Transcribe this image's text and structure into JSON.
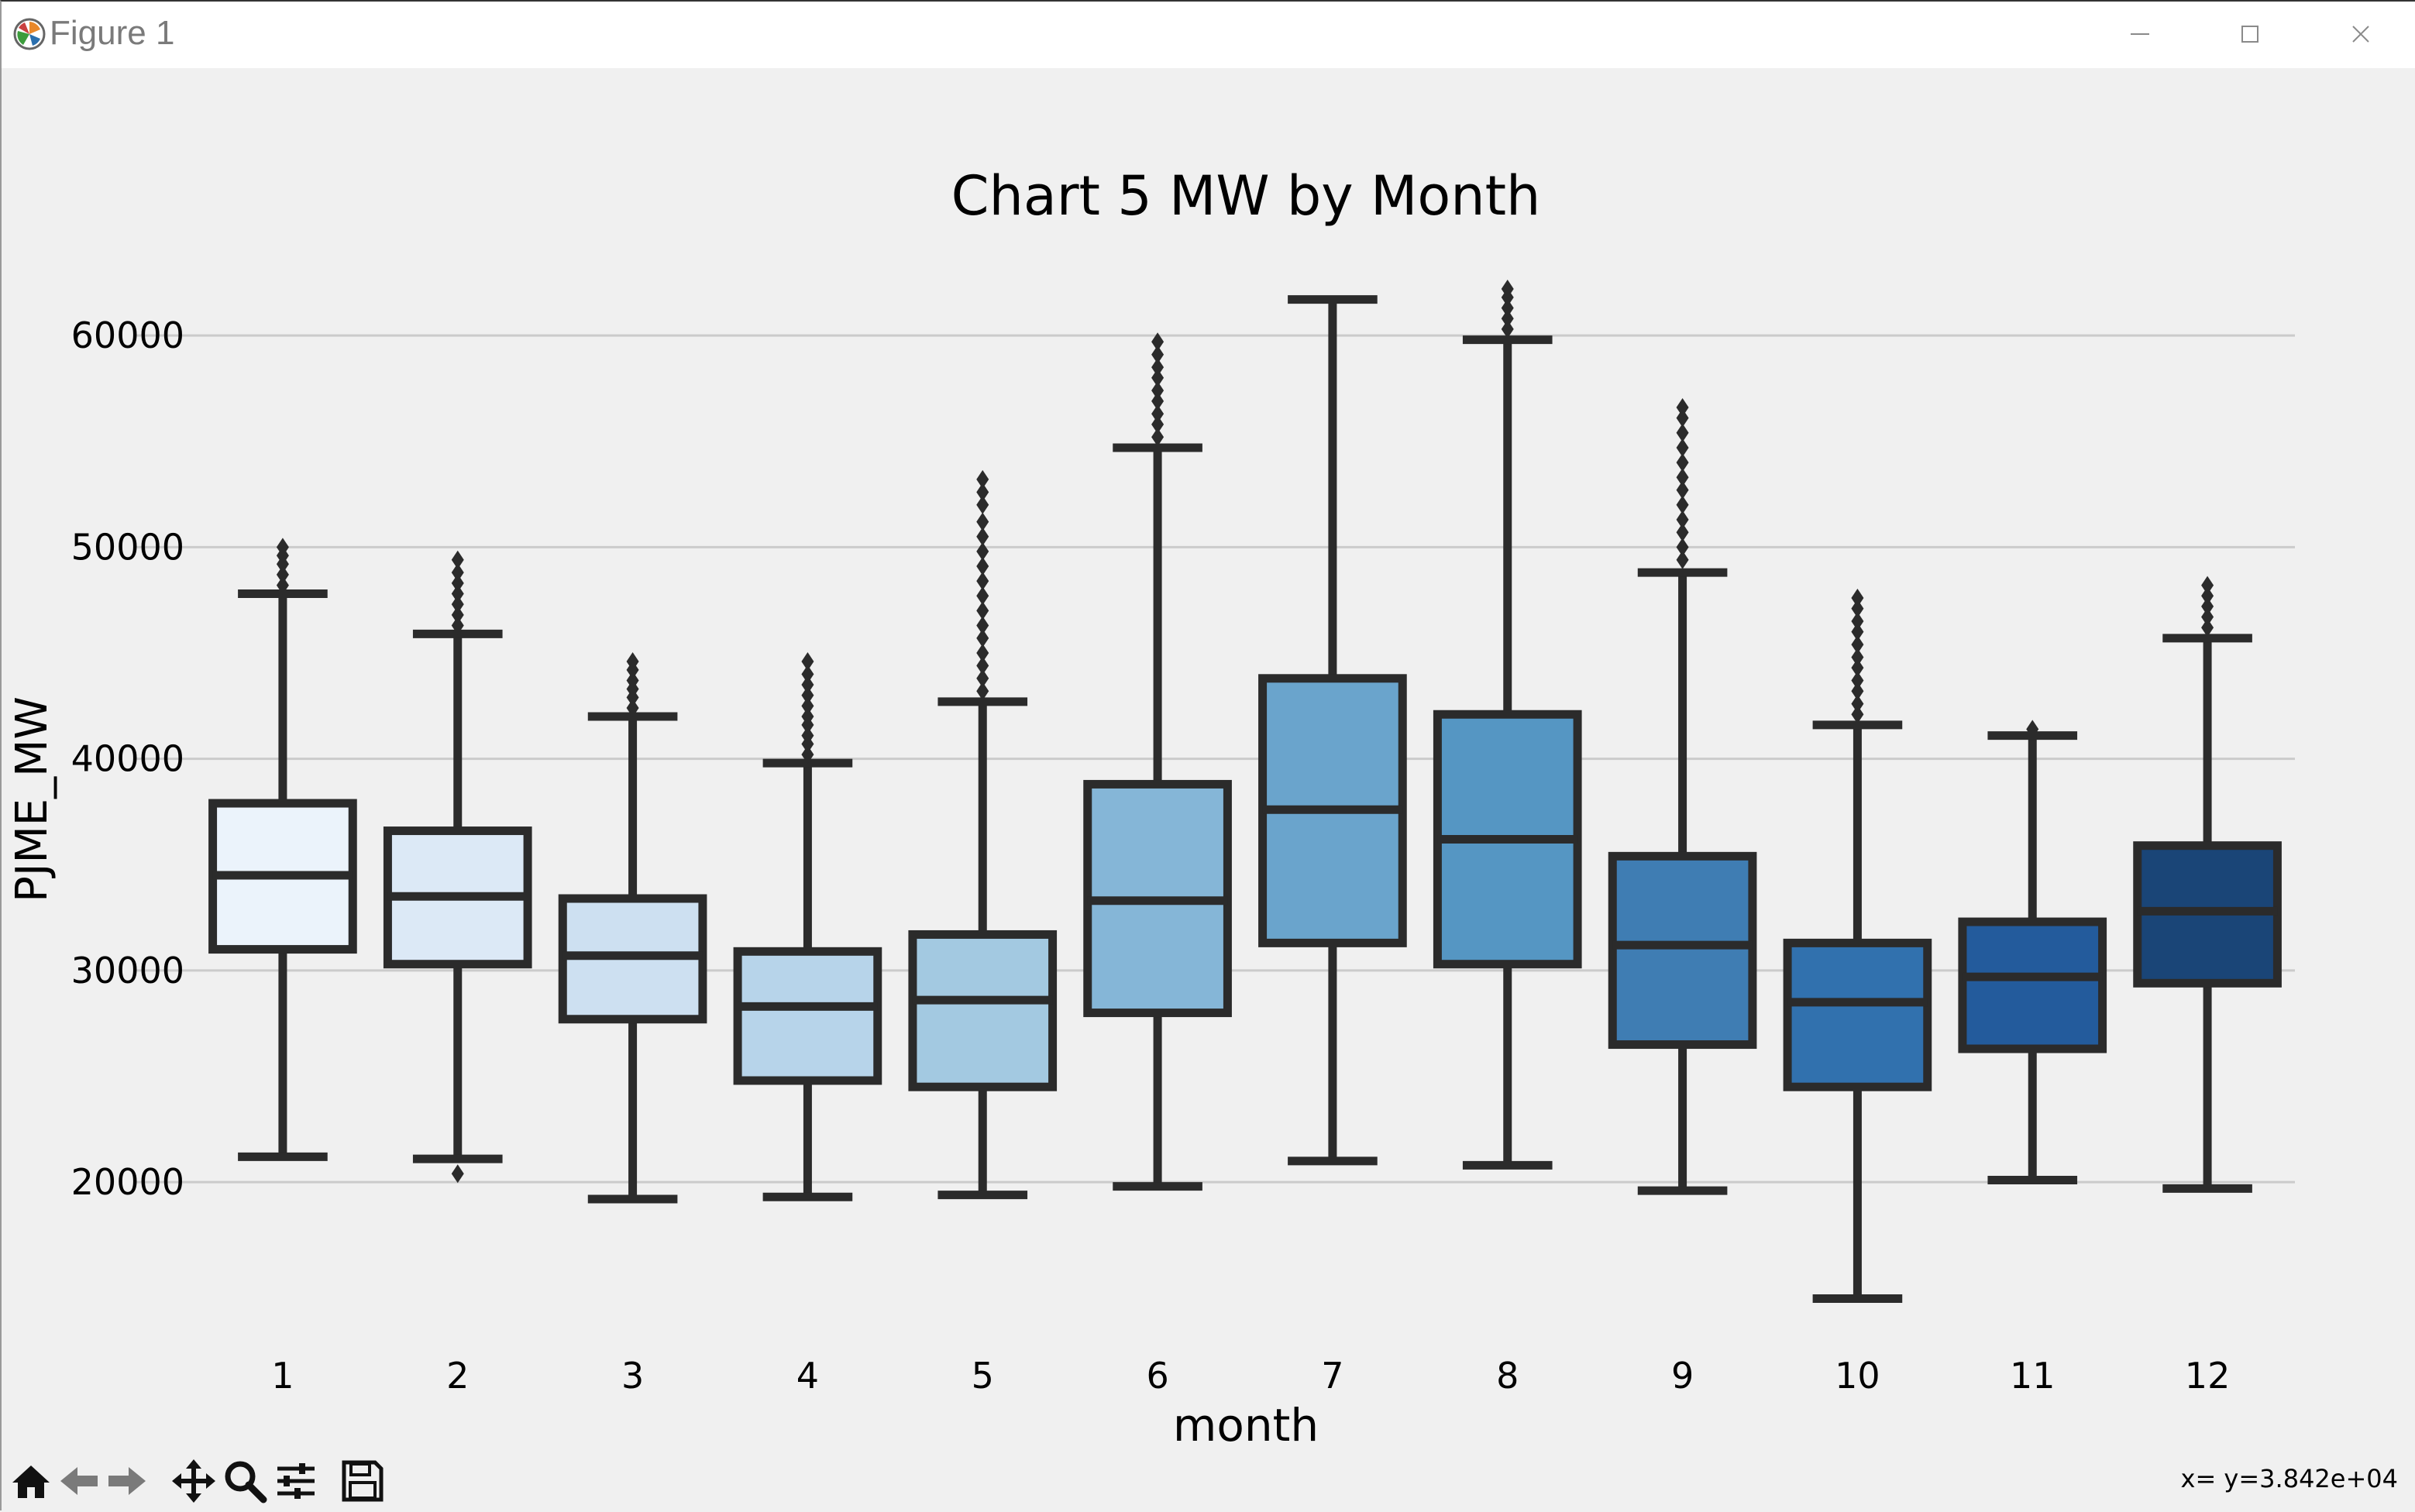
{
  "window": {
    "title": "Figure 1"
  },
  "status": {
    "coords": "x= y=3.842e+04"
  },
  "toolbar": {
    "tools": [
      {
        "name": "home-icon"
      },
      {
        "name": "back-icon"
      },
      {
        "name": "forward-icon"
      },
      {
        "name": "pan-icon"
      },
      {
        "name": "zoom-icon"
      },
      {
        "name": "configure-subplots-icon"
      },
      {
        "name": "save-icon"
      }
    ]
  },
  "chart_data": {
    "type": "box",
    "title": "Chart 5 MW by Month",
    "xlabel": "month",
    "ylabel": "PJME_MW",
    "ylim": [
      13200,
      63700
    ],
    "yticks": [
      20000,
      30000,
      40000,
      50000,
      60000
    ],
    "grid": "horizontal",
    "categories": [
      "1",
      "2",
      "3",
      "4",
      "5",
      "6",
      "7",
      "8",
      "9",
      "10",
      "11",
      "12"
    ],
    "boxes": [
      {
        "min": 21200,
        "q1": 31000,
        "median": 34500,
        "q3": 37900,
        "max": 47800,
        "fliers": [
          48200,
          48700,
          49200,
          49600,
          50000
        ],
        "color": "#ebf3fb"
      },
      {
        "min": 21100,
        "q1": 30300,
        "median": 33500,
        "q3": 36600,
        "max": 45900,
        "fliers": [
          20400,
          46300,
          46800,
          47300,
          47800,
          48300,
          48800,
          49400
        ],
        "color": "#dce9f6"
      },
      {
        "min": 19200,
        "q1": 27700,
        "median": 30700,
        "q3": 33400,
        "max": 42000,
        "fliers": [
          42400,
          42900,
          43300,
          43700,
          44200,
          44600
        ],
        "color": "#cde0f1"
      },
      {
        "min": 19300,
        "q1": 24800,
        "median": 28300,
        "q3": 30900,
        "max": 39800,
        "fliers": [
          40200,
          40700,
          41100,
          41600,
          42000,
          42500,
          43000,
          43500,
          44000,
          44600
        ],
        "color": "#b7d4ea"
      },
      {
        "min": 19400,
        "q1": 24500,
        "median": 28600,
        "q3": 31700,
        "max": 42700,
        "fliers": [
          43200,
          43800,
          44400,
          45000,
          45700,
          46300,
          47000,
          47700,
          48400,
          49100,
          49800,
          50500,
          51200,
          52000,
          52600,
          53200
        ],
        "color": "#a3c9e1"
      },
      {
        "min": 19800,
        "q1": 28000,
        "median": 33300,
        "q3": 38800,
        "max": 54700,
        "fliers": [
          55200,
          55800,
          56300,
          56900,
          57400,
          58000,
          58500,
          59100,
          59700
        ],
        "color": "#85b6d7"
      },
      {
        "min": 21000,
        "q1": 31300,
        "median": 37600,
        "q3": 43800,
        "max": 61700,
        "fliers": [],
        "color": "#6aa4cc"
      },
      {
        "min": 20800,
        "q1": 30300,
        "median": 36200,
        "q3": 42100,
        "max": 59800,
        "fliers": [
          60300,
          60800,
          61300,
          61800,
          62200
        ],
        "color": "#5596c3"
      },
      {
        "min": 19600,
        "q1": 26500,
        "median": 31200,
        "q3": 35400,
        "max": 48800,
        "fliers": [
          49400,
          50000,
          50700,
          51300,
          52000,
          52700,
          53300,
          54000,
          54700,
          55400,
          56100,
          56600
        ],
        "color": "#3f7db3"
      },
      {
        "min": 14500,
        "q1": 24500,
        "median": 28500,
        "q3": 31300,
        "max": 41600,
        "fliers": [
          42100,
          42600,
          43200,
          43700,
          44300,
          44800,
          45400,
          46000,
          46500,
          47100,
          47600
        ],
        "color": "#3171ae"
      },
      {
        "min": 20100,
        "q1": 26300,
        "median": 29700,
        "q3": 32300,
        "max": 41100,
        "fliers": [
          41400
        ],
        "color": "#235b9c"
      },
      {
        "min": 19700,
        "q1": 29400,
        "median": 32800,
        "q3": 35900,
        "max": 45700,
        "fliers": [
          46200,
          46700,
          47200,
          47700,
          48200
        ],
        "color": "#1a4577"
      }
    ]
  }
}
